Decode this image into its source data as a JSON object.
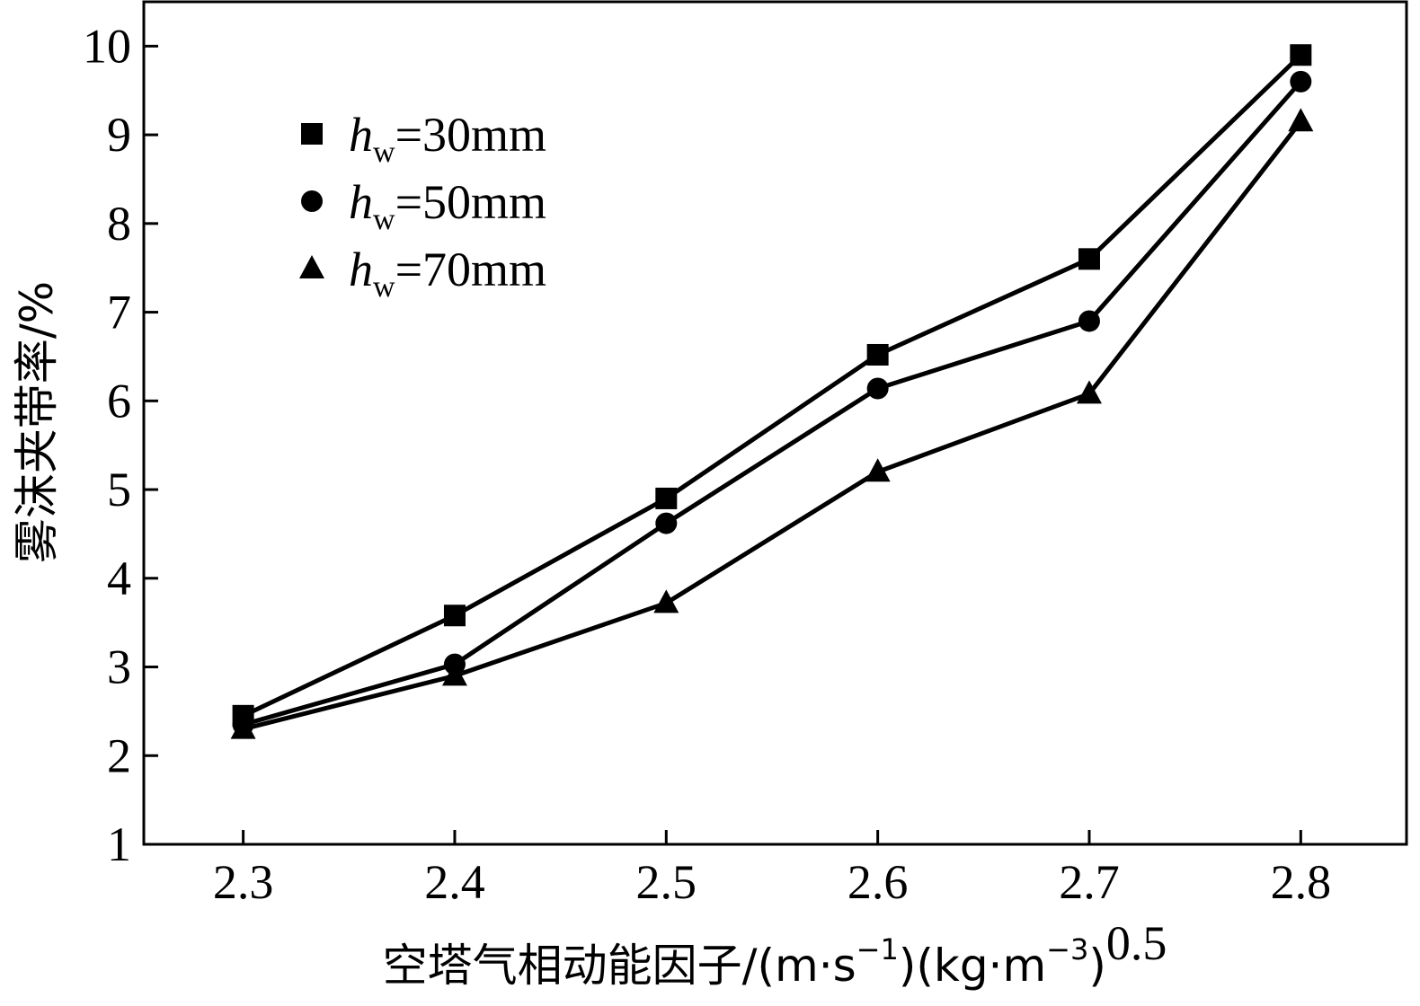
{
  "chart_data": {
    "type": "line",
    "x": [
      2.3,
      2.4,
      2.5,
      2.6,
      2.7,
      2.8
    ],
    "series": [
      {
        "name": "h_w=30mm",
        "symbol": "square",
        "values": [
          2.45,
          3.58,
          4.9,
          6.52,
          7.6,
          9.9
        ]
      },
      {
        "name": "h_w=50mm",
        "symbol": "circle",
        "values": [
          2.35,
          3.03,
          4.62,
          6.14,
          6.9,
          9.6
        ]
      },
      {
        "name": "h_w=70mm",
        "symbol": "triangle",
        "values": [
          2.3,
          2.9,
          3.72,
          5.2,
          6.08,
          9.15
        ]
      }
    ],
    "xlim": [
      2.253,
      2.85
    ],
    "ylim": [
      1,
      10.5
    ],
    "xticks": [
      "2.3",
      "2.4",
      "2.5",
      "2.6",
      "2.7",
      "2.8"
    ],
    "yticks": [
      "1",
      "2",
      "3",
      "4",
      "5",
      "6",
      "7",
      "8",
      "9",
      "10"
    ],
    "xlabel": {
      "main": "空塔气相动能因子/(m·s",
      "exp1": "−1",
      "mid": ")(kg·m",
      "exp2": "−3",
      "close": ")",
      "exp3": "0.5"
    },
    "ylabel": "雾沫夹带率/%",
    "legend": {
      "position": "top-left",
      "entries": [
        {
          "h": "h",
          "sub": "w",
          "rest": "=30mm"
        },
        {
          "h": "h",
          "sub": "w",
          "rest": "=50mm"
        },
        {
          "h": "h",
          "sub": "w",
          "rest": "=70mm"
        }
      ]
    },
    "grid": false,
    "line_color": "#000000"
  }
}
